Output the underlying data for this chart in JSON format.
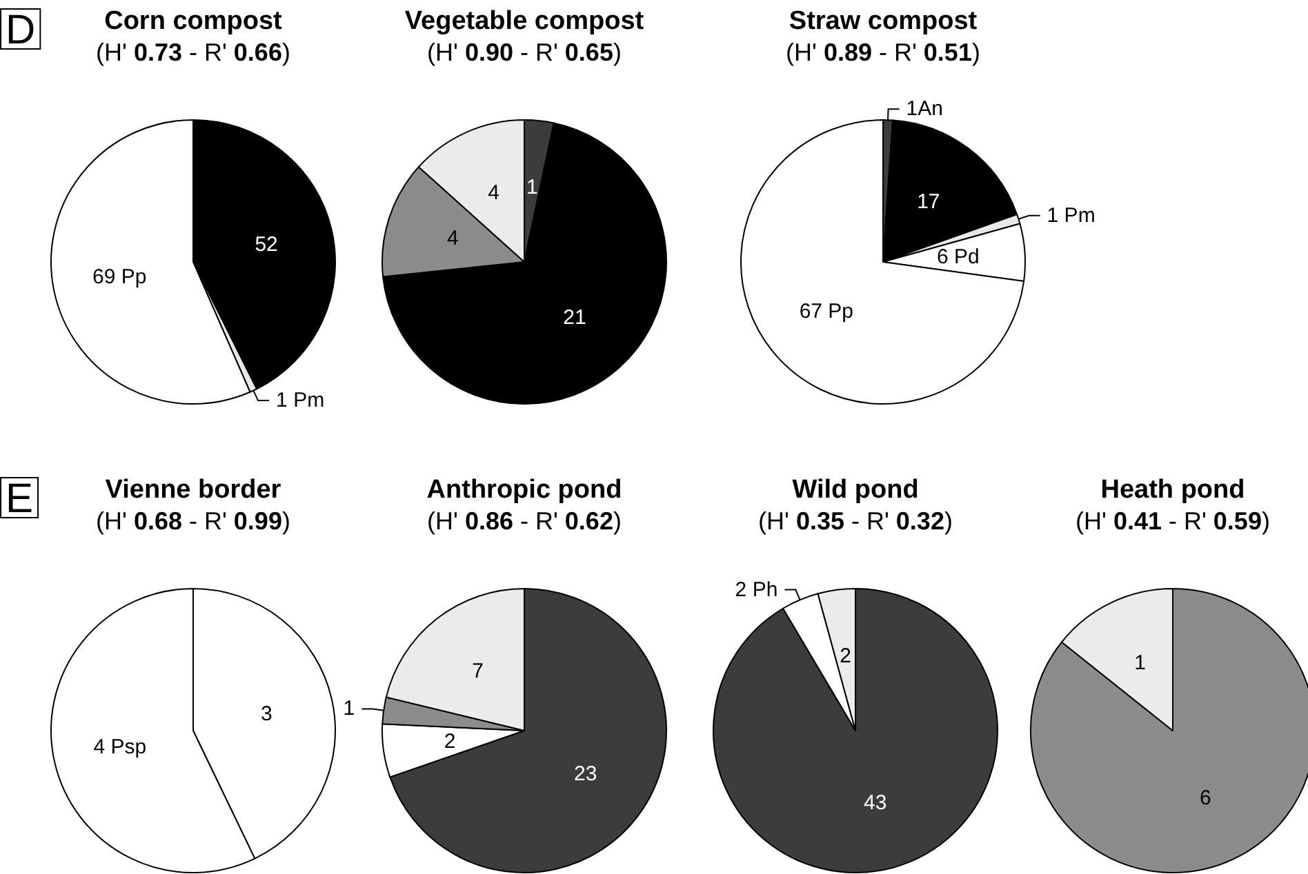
{
  "chart_data": [
    {
      "type": "pie",
      "title": "Corn compost",
      "subtitle": "(H' 0.73 - R' 0.66)",
      "annotations": [
        "D"
      ],
      "categories": [
        null,
        null,
        null
      ],
      "values": [
        52,
        1,
        69
      ],
      "colors": [
        "#000000",
        "#e8e8e8",
        "#ffffff"
      ],
      "value_labels": [
        "52",
        "1 Pm",
        "69 Pp"
      ]
    },
    {
      "type": "pie",
      "title": "Vegetable compost",
      "subtitle": "(H' 0.90 - R' 0.65)",
      "categories": [
        null,
        null,
        null,
        null
      ],
      "values": [
        1,
        21,
        4,
        4
      ],
      "colors": [
        "#3c3c3c",
        "#000000",
        "#8c8c8c",
        "#ececec"
      ],
      "value_labels": [
        "1",
        "21",
        "4",
        "4"
      ]
    },
    {
      "type": "pie",
      "title": "Straw compost",
      "subtitle": "(H' 0.89 - R' 0.51)",
      "categories": [
        null,
        null,
        null,
        null,
        null
      ],
      "values": [
        1,
        17,
        1,
        6,
        67
      ],
      "colors": [
        "#3c3c3c",
        "#000000",
        "#e8e8e8",
        "#ffffff",
        "#ffffff"
      ],
      "value_labels": [
        "1An",
        "17",
        "1 Pm",
        "6 Pd",
        "67 Pp"
      ]
    },
    {
      "type": "pie",
      "title": "Vienne border",
      "subtitle": "(H' 0.68 - R' 0.99)",
      "annotations": [
        "E"
      ],
      "categories": [
        null,
        null
      ],
      "values": [
        3,
        4
      ],
      "colors": [
        "#ffffff",
        "#ffffff"
      ],
      "value_labels": [
        "3",
        "4 Psp"
      ]
    },
    {
      "type": "pie",
      "title": "Anthropic pond",
      "subtitle": "(H' 0.86 - R' 0.62)",
      "categories": [
        null,
        null,
        null,
        null
      ],
      "values": [
        23,
        2,
        1,
        7
      ],
      "colors": [
        "#3c3c3c",
        "#ffffff",
        "#8c8c8c",
        "#ececec"
      ],
      "value_labels": [
        "23",
        "2",
        "1",
        "7"
      ]
    },
    {
      "type": "pie",
      "title": "Wild pond",
      "subtitle": "(H' 0.35 - R' 0.32)",
      "categories": [
        null,
        null,
        null
      ],
      "values": [
        43,
        2,
        2
      ],
      "colors": [
        "#3c3c3c",
        "#ffffff",
        "#ececec"
      ],
      "value_labels": [
        "43",
        "2 Ph",
        "2"
      ]
    },
    {
      "type": "pie",
      "title": "Heath pond",
      "subtitle": "(H' 0.41 - R' 0.59)",
      "categories": [
        null,
        null
      ],
      "values": [
        6,
        1
      ],
      "colors": [
        "#8c8c8c",
        "#ececec"
      ],
      "value_labels": [
        "6",
        "1"
      ]
    }
  ]
}
